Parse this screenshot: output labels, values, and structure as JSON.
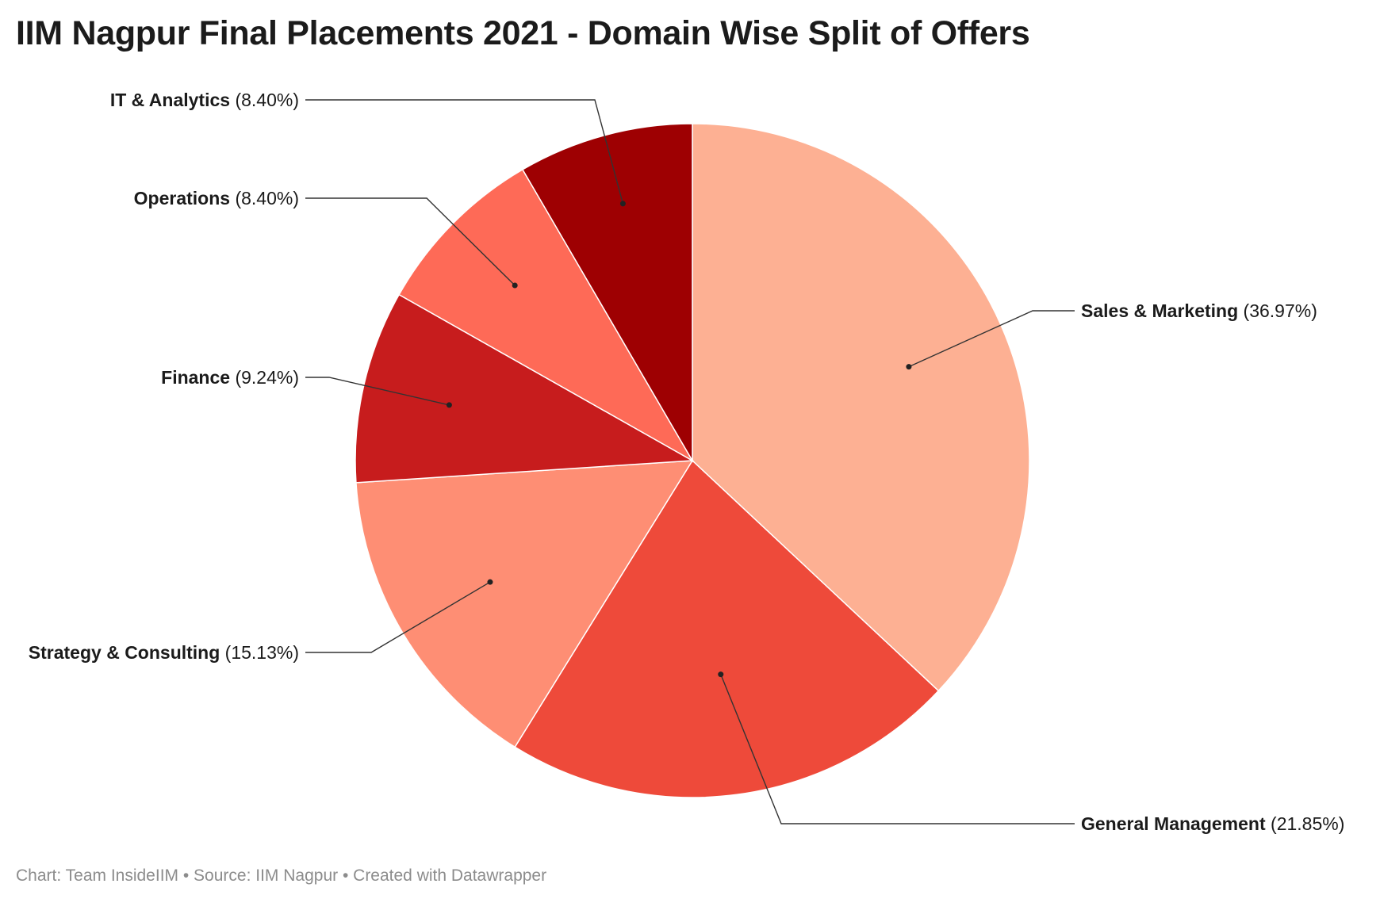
{
  "chart_data": {
    "type": "pie",
    "title": "IIM Nagpur Final Placements 2021 - Domain Wise Split of Offers",
    "slices": [
      {
        "label": "Sales & Marketing",
        "value": 36.97,
        "value_label": "(36.97%)",
        "color": "#fdb093"
      },
      {
        "label": "General Management",
        "value": 21.85,
        "value_label": "(21.85%)",
        "color": "#ee4a3a"
      },
      {
        "label": "Strategy & Consulting",
        "value": 15.13,
        "value_label": "(15.13%)",
        "color": "#fe8e74"
      },
      {
        "label": "Finance",
        "value": 9.24,
        "value_label": "(9.24%)",
        "color": "#c71c1d"
      },
      {
        "label": "Operations",
        "value": 8.4,
        "value_label": "(8.40%)",
        "color": "#fe6a57"
      },
      {
        "label": "IT & Analytics",
        "value": 8.4,
        "value_label": "(8.40%)",
        "color": "#9e0002"
      }
    ],
    "start": "12 o'clock",
    "direction": "clockwise",
    "label_style": "outside labels with leader lines"
  },
  "footer": "Chart: Team InsideIIM • Source: IIM Nagpur • Created with Datawrapper"
}
